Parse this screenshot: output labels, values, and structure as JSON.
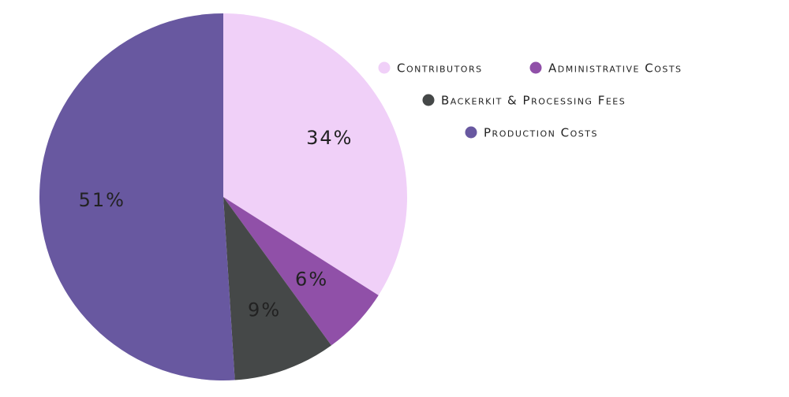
{
  "chart_data": {
    "type": "pie",
    "categories": [
      "Contributors",
      "Administrative Costs",
      "Backerkit & Processing Fees",
      "Production Costs"
    ],
    "values": [
      34,
      6,
      9,
      51
    ],
    "value_labels": [
      "34%",
      "6%",
      "9%",
      "51%"
    ],
    "colors": [
      "#f0d0f8",
      "#9050a8",
      "#454848",
      "#6858a0"
    ],
    "legend": "top-right"
  }
}
